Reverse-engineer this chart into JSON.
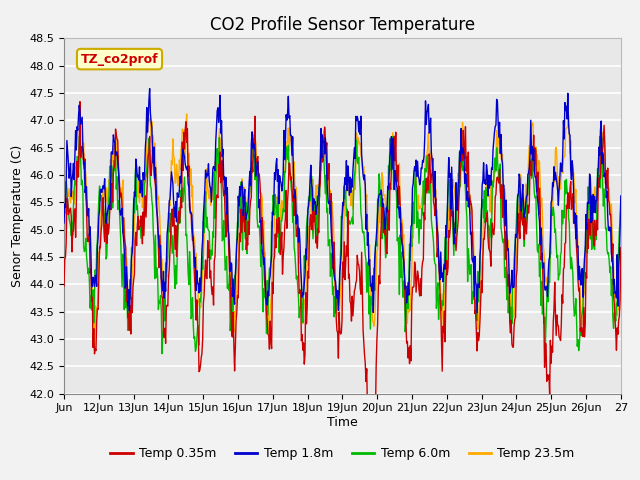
{
  "title": "CO2 Profile Sensor Temperature",
  "ylabel": "Senor Temperature (C)",
  "xlabel": "Time",
  "ylim": [
    42.0,
    48.5
  ],
  "xlim": [
    0,
    16
  ],
  "x_tick_labels": [
    "Jun",
    "12Jun",
    "13Jun",
    "14Jun",
    "15Jun",
    "16Jun",
    "17Jun",
    "18Jun",
    "19Jun",
    "20Jun",
    "21Jun",
    "22Jun",
    "23Jun",
    "24Jun",
    "25Jun",
    "26Jun",
    "27"
  ],
  "yticks": [
    42.0,
    42.5,
    43.0,
    43.5,
    44.0,
    44.5,
    45.0,
    45.5,
    46.0,
    46.5,
    47.0,
    47.5,
    48.0,
    48.5
  ],
  "colors": {
    "Temp 0.35m": "#cc0000",
    "Temp 1.8m": "#0000cc",
    "Temp 6.0m": "#00bb00",
    "Temp 23.5m": "#ffaa00"
  },
  "legend_label": "TZ_co2prof",
  "legend_box_facecolor": "#ffffcc",
  "legend_box_edgecolor": "#ccaa00",
  "plot_bg_color": "#e8e8e8",
  "fig_bg_color": "#f2f2f2",
  "grid_color": "#ffffff",
  "title_fontsize": 12,
  "axis_label_fontsize": 9,
  "tick_fontsize": 8,
  "legend_fontsize": 9,
  "line_width": 1.0
}
